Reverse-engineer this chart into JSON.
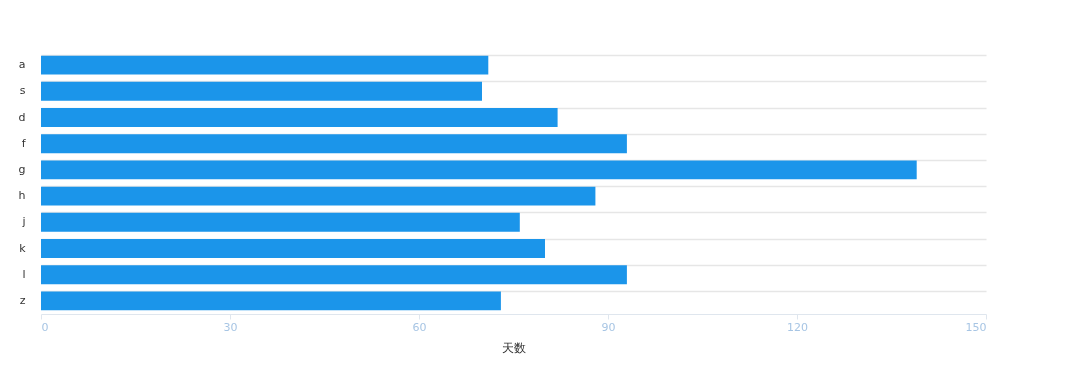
{
  "chart_data": {
    "type": "bar",
    "orientation": "horizontal",
    "xlabel": "天数",
    "categories": [
      "a",
      "s",
      "d",
      "f",
      "g",
      "h",
      "j",
      "k",
      "l",
      "z"
    ],
    "values": [
      71,
      70,
      82,
      93,
      139,
      88,
      76,
      80,
      93,
      73
    ],
    "color": "#1b95ea",
    "xlim": [
      0,
      150
    ],
    "xticks": [
      0,
      30,
      60,
      90,
      120,
      150
    ],
    "grid": "y"
  }
}
